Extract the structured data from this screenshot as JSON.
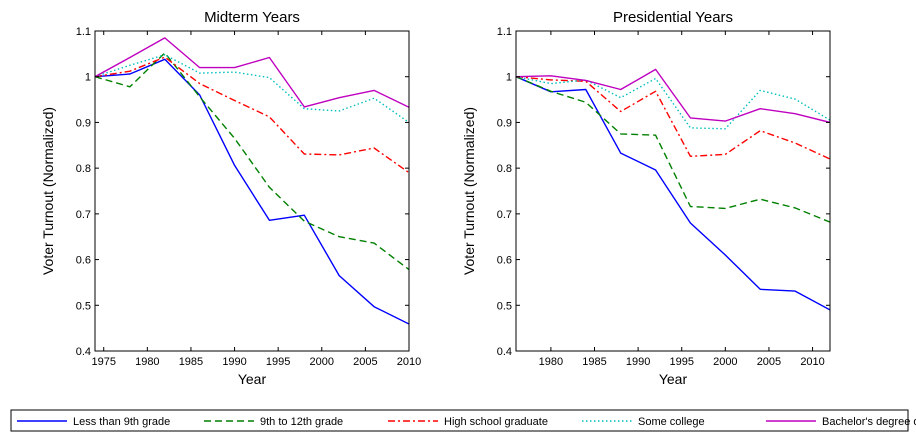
{
  "chart_data": [
    {
      "type": "line",
      "title": "Midterm Years",
      "xlabel": "Year",
      "ylabel": "Voter Turnout (Normalized)",
      "xlim": [
        1974,
        2010
      ],
      "ylim": [
        0.4,
        1.1
      ],
      "xticks": [
        1975,
        1980,
        1985,
        1990,
        1995,
        2000,
        2005,
        2010
      ],
      "xtick_labels": [
        "1975",
        "1980",
        "1985",
        "1990",
        "1995",
        "2000",
        "2005",
        "2010"
      ],
      "yticks": [
        0.4,
        0.5,
        0.6,
        0.7,
        0.8,
        0.9,
        1.0,
        1.1
      ],
      "ytick_labels": [
        "0.4",
        "0.5",
        "0.6",
        "0.7",
        "0.8",
        "0.9",
        "1",
        "1.1"
      ],
      "x": [
        1974,
        1978,
        1982,
        1986,
        1990,
        1994,
        1998,
        2002,
        2006,
        2010
      ],
      "series": [
        {
          "name": "Less than 9th grade",
          "values": [
            1.0,
            1.006,
            1.038,
            0.96,
            0.806,
            0.686,
            0.697,
            0.565,
            0.497,
            0.459
          ]
        },
        {
          "name": "9th to 12th grade",
          "values": [
            1.0,
            0.978,
            1.052,
            0.956,
            0.865,
            0.758,
            0.684,
            0.65,
            0.636,
            0.578
          ]
        },
        {
          "name": "High school graduate",
          "values": [
            1.0,
            1.012,
            1.043,
            0.985,
            0.948,
            0.912,
            0.831,
            0.829,
            0.844,
            0.79
          ]
        },
        {
          "name": "Some college",
          "values": [
            1.0,
            1.025,
            1.048,
            1.008,
            1.01,
            0.998,
            0.93,
            0.925,
            0.953,
            0.9
          ]
        },
        {
          "name": "Bachelor's degree or more",
          "values": [
            1.0,
            1.042,
            1.085,
            1.02,
            1.02,
            1.042,
            0.934,
            0.954,
            0.97,
            0.933
          ]
        }
      ]
    },
    {
      "type": "line",
      "title": "Presidential Years",
      "xlabel": "Year",
      "ylabel": "Voter Turnout (Normalized)",
      "xlim": [
        1976,
        2012
      ],
      "ylim": [
        0.4,
        1.1
      ],
      "xticks": [
        1980,
        1985,
        1990,
        1995,
        2000,
        2005,
        2010
      ],
      "xtick_labels": [
        "1980",
        "1985",
        "1990",
        "1995",
        "2000",
        "2005",
        "2010"
      ],
      "yticks": [
        0.4,
        0.5,
        0.6,
        0.7,
        0.8,
        0.9,
        1.0,
        1.1
      ],
      "ytick_labels": [
        "0.4",
        "0.5",
        "0.6",
        "0.7",
        "0.8",
        "0.9",
        "1",
        "1.1"
      ],
      "x": [
        1976,
        1980,
        1984,
        1988,
        1992,
        1996,
        2000,
        2004,
        2008,
        2012
      ],
      "series": [
        {
          "name": "Less than 9th grade",
          "values": [
            1.0,
            0.967,
            0.972,
            0.833,
            0.796,
            0.68,
            0.61,
            0.535,
            0.531,
            0.49
          ]
        },
        {
          "name": "9th to 12th grade",
          "values": [
            1.0,
            0.968,
            0.944,
            0.875,
            0.872,
            0.716,
            0.712,
            0.732,
            0.713,
            0.682
          ]
        },
        {
          "name": "High school graduate",
          "values": [
            1.0,
            0.993,
            0.99,
            0.924,
            0.968,
            0.826,
            0.83,
            0.882,
            0.855,
            0.82
          ]
        },
        {
          "name": "Some college",
          "values": [
            1.0,
            0.985,
            0.993,
            0.954,
            0.996,
            0.888,
            0.886,
            0.97,
            0.951,
            0.905
          ]
        },
        {
          "name": "Bachelor's degree or more",
          "values": [
            1.0,
            1.002,
            0.992,
            0.972,
            1.016,
            0.91,
            0.903,
            0.93,
            0.919,
            0.9
          ]
        }
      ]
    }
  ],
  "legend": {
    "placement": "bottom",
    "entries": [
      {
        "label": "Less than 9th grade",
        "color": "#0000ff",
        "style": "solid"
      },
      {
        "label": "9th to 12th grade",
        "color": "#008000",
        "style": "dashed"
      },
      {
        "label": "High school graduate",
        "color": "#ff0000",
        "style": "dashdot"
      },
      {
        "label": "Some college",
        "color": "#00bfbf",
        "style": "dotted"
      },
      {
        "label": "Bachelor's degree or more",
        "color": "#bf00bf",
        "style": "solid"
      }
    ]
  }
}
